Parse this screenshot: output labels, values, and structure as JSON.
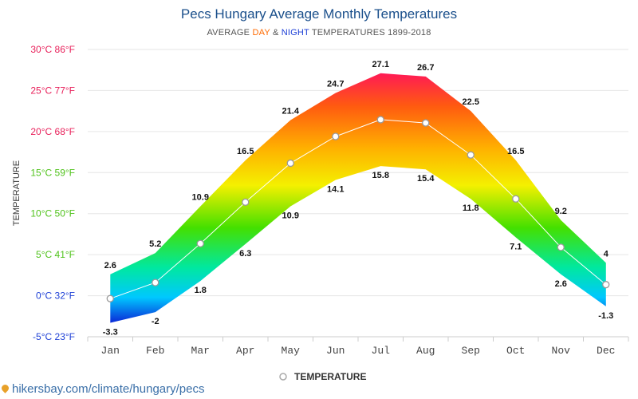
{
  "header": {
    "title": "Pecs Hungary Average Monthly Temperatures",
    "subtitle_prefix": "AVERAGE ",
    "subtitle_day": "DAY",
    "subtitle_amp": " & ",
    "subtitle_night": "NIGHT",
    "subtitle_suffix": " TEMPERATURES 1899-2018"
  },
  "footer": {
    "source": "hikersbay.com/climate/hungary/pecs"
  },
  "chart_data": {
    "type": "area",
    "categories": [
      "Jan",
      "Feb",
      "Mar",
      "Apr",
      "May",
      "Jun",
      "Jul",
      "Aug",
      "Sep",
      "Oct",
      "Nov",
      "Dec"
    ],
    "series": [
      {
        "name": "",
        "role": "day",
        "values": [
          2.6,
          5.2,
          10.9,
          16.5,
          21.4,
          24.7,
          27.1,
          26.7,
          22.5,
          16.5,
          9.2,
          4
        ]
      },
      {
        "name": "",
        "role": "night",
        "values": [
          -3.3,
          -2,
          1.8,
          6.3,
          10.9,
          14.1,
          15.8,
          15.4,
          11.8,
          7.1,
          2.6,
          -1.3
        ]
      },
      {
        "name": "TEMPERATURE",
        "role": "average",
        "values": [
          -0.35,
          1.6,
          6.35,
          11.4,
          16.15,
          19.4,
          21.45,
          21.05,
          17.15,
          11.8,
          5.9,
          1.35
        ]
      }
    ],
    "ylabel": "TEMPERATURE",
    "ylim": [
      -5,
      30
    ],
    "y_ticks": [
      "-5°C 23°F",
      "0°C 32°F",
      "5°C 41°F",
      "10°C 50°F",
      "15°C 59°F",
      "20°C 68°F",
      "25°C 77°F",
      "30°C 86°F"
    ],
    "day_labels": [
      "2.6",
      "5.2",
      "10.9",
      "16.5",
      "21.4",
      "24.7",
      "27.1",
      "26.7",
      "22.5",
      "16.5",
      "9.2",
      "4"
    ],
    "night_labels": [
      "-3.3",
      "-2",
      "1.8",
      "6.3",
      "10.9",
      "14.1",
      "15.8",
      "15.4",
      "11.8",
      "7.1",
      "2.6",
      "-1.3"
    ],
    "legend": {
      "label": "TEMPERATURE",
      "position": "bottom"
    },
    "grid": true,
    "colors": {
      "tick_30": "#e8205a",
      "tick_25": "#e8205a",
      "tick_20": "#e8205a",
      "tick_15": "#4fc21a",
      "tick_10": "#4fc21a",
      "tick_5": "#4fc21a",
      "tick_0": "#1d3fd6",
      "tick_-5": "#1d3fd6",
      "grid": "#e6e6e6",
      "avg_line": "#ffffff"
    }
  }
}
